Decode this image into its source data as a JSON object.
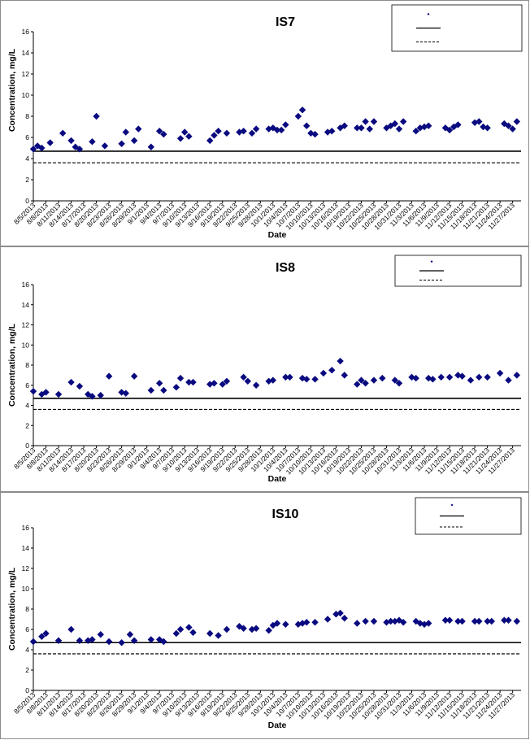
{
  "chart_data": [
    {
      "type": "scatter",
      "title": "IS7",
      "xlabel": "Date",
      "ylabel": "Concentration, mg/L",
      "ylim": [
        0,
        16
      ],
      "yticks": [
        0,
        2,
        4,
        6,
        8,
        10,
        12,
        14,
        16
      ],
      "xticks": [
        "8/5/2013",
        "8/8/2013",
        "8/11/2013",
        "8/14/2013",
        "8/17/2013",
        "8/20/2013",
        "8/23/2013",
        "8/26/2013",
        "8/29/2013",
        "9/1/2013",
        "9/4/2013",
        "9/7/2013",
        "9/10/2013",
        "9/13/2013",
        "9/16/2013",
        "9/19/2013",
        "9/22/2013",
        "9/25/2013",
        "9/28/2013",
        "10/1/2013",
        "10/4/2013",
        "10/7/2013",
        "10/10/2013",
        "10/13/2013",
        "10/16/2013",
        "10/19/2013",
        "10/22/2013",
        "10/25/2013",
        "10/28/2013",
        "10/31/2013",
        "11/3/2013",
        "11/6/2013",
        "11/9/2013",
        "11/12/2013",
        "11/15/2013",
        "11/18/2013",
        "11/21/2013",
        "11/24/2013",
        "11/27/2013"
      ],
      "legend_position": "top-right",
      "series": [
        {
          "color": "#0a0a80",
          "marker": "diamond",
          "x": [
            "8/5/2013",
            "8/6/2013",
            "8/7/2013",
            "8/9/2013",
            "8/12/2013",
            "8/14/2013",
            "8/15/2013",
            "8/16/2013",
            "8/19/2013",
            "8/20/2013",
            "8/22/2013",
            "8/26/2013",
            "8/27/2013",
            "8/29/2013",
            "8/30/2013",
            "9/2/2013",
            "9/4/2013",
            "9/5/2013",
            "9/9/2013",
            "9/10/2013",
            "9/11/2013",
            "9/16/2013",
            "9/17/2013",
            "9/18/2013",
            "9/20/2013",
            "9/23/2013",
            "9/24/2013",
            "9/26/2013",
            "9/27/2013",
            "9/30/2013",
            "10/1/2013",
            "10/2/2013",
            "10/3/2013",
            "10/4/2013",
            "10/7/2013",
            "10/8/2013",
            "10/9/2013",
            "10/10/2013",
            "10/11/2013",
            "10/14/2013",
            "10/15/2013",
            "10/17/2013",
            "10/18/2013",
            "10/21/2013",
            "10/22/2013",
            "10/23/2013",
            "10/24/2013",
            "10/25/2013",
            "10/28/2013",
            "10/29/2013",
            "10/30/2013",
            "10/31/2013",
            "11/1/2013",
            "11/4/2013",
            "11/5/2013",
            "11/6/2013",
            "11/7/2013",
            "11/11/2013",
            "11/12/2013",
            "11/13/2013",
            "11/14/2013",
            "11/18/2013",
            "11/19/2013",
            "11/20/2013",
            "11/21/2013",
            "11/25/2013",
            "11/26/2013",
            "11/27/2013",
            "11/28/2013"
          ],
          "y": [
            4.9,
            5.2,
            5.0,
            5.5,
            6.4,
            5.7,
            5.1,
            4.9,
            5.6,
            8.0,
            5.2,
            5.4,
            6.5,
            5.7,
            6.8,
            5.1,
            6.6,
            6.3,
            5.9,
            6.5,
            6.1,
            5.7,
            6.2,
            6.6,
            6.4,
            6.5,
            6.6,
            6.4,
            6.8,
            6.8,
            6.9,
            6.7,
            6.7,
            7.2,
            8.0,
            8.6,
            7.1,
            6.4,
            6.3,
            6.5,
            6.6,
            6.9,
            7.1,
            6.9,
            6.9,
            7.5,
            6.8,
            7.5,
            6.9,
            7.1,
            7.3,
            6.8,
            7.5,
            6.6,
            6.9,
            7.0,
            7.1,
            6.9,
            6.7,
            7.0,
            7.2,
            7.4,
            7.5,
            7.0,
            6.9,
            7.3,
            7.1,
            6.8,
            7.5
          ]
        }
      ],
      "reference_lines": [
        {
          "y": 4.7,
          "style": "solid",
          "color": "#000000"
        },
        {
          "y": 3.6,
          "style": "dashed",
          "color": "#000000"
        }
      ]
    },
    {
      "type": "scatter",
      "title": "IS8",
      "xlabel": "Date",
      "ylabel": "Concentration, mg/L",
      "ylim": [
        0,
        16
      ],
      "yticks": [
        0,
        2,
        4,
        6,
        8,
        10,
        12,
        14,
        16
      ],
      "xticks": [
        "8/5/2013",
        "8/8/2013",
        "8/11/2013",
        "8/14/2013",
        "8/17/2013",
        "8/20/2013",
        "8/23/2013",
        "8/26/2013",
        "8/29/2013",
        "9/1/2013",
        "9/4/2013",
        "9/7/2013",
        "9/10/2013",
        "9/13/2013",
        "9/16/2013",
        "9/19/2013",
        "9/22/2013",
        "9/25/2013",
        "9/28/2013",
        "10/1/2013",
        "10/4/2013",
        "10/7/2013",
        "10/10/2013",
        "10/13/2013",
        "10/16/2013",
        "10/19/2013",
        "10/22/2013",
        "10/25/2013",
        "10/28/2013",
        "10/31/2013",
        "11/3/2013",
        "11/6/2013",
        "11/9/2013",
        "11/12/2013",
        "11/15/2013",
        "11/18/2013",
        "11/21/2013",
        "11/24/2013",
        "11/27/2013"
      ],
      "legend_position": "top-right",
      "series": [
        {
          "color": "#0a0a80",
          "marker": "diamond",
          "x": [
            "8/5/2013",
            "8/7/2013",
            "8/8/2013",
            "8/11/2013",
            "8/14/2013",
            "8/16/2013",
            "8/18/2013",
            "8/19/2013",
            "8/21/2013",
            "8/23/2013",
            "8/26/2013",
            "8/27/2013",
            "8/29/2013",
            "9/2/2013",
            "9/4/2013",
            "9/5/2013",
            "9/8/2013",
            "9/9/2013",
            "9/11/2013",
            "9/12/2013",
            "9/16/2013",
            "9/17/2013",
            "9/19/2013",
            "9/20/2013",
            "9/24/2013",
            "9/25/2013",
            "9/27/2013",
            "9/30/2013",
            "10/1/2013",
            "10/4/2013",
            "10/5/2013",
            "10/8/2013",
            "10/9/2013",
            "10/11/2013",
            "10/13/2013",
            "10/15/2013",
            "10/17/2013",
            "10/18/2013",
            "10/21/2013",
            "10/22/2013",
            "10/23/2013",
            "10/25/2013",
            "10/27/2013",
            "10/30/2013",
            "10/31/2013",
            "11/3/2013",
            "11/4/2013",
            "11/7/2013",
            "11/8/2013",
            "11/10/2013",
            "11/12/2013",
            "11/14/2013",
            "11/15/2013",
            "11/17/2013",
            "11/19/2013",
            "11/21/2013",
            "11/24/2013",
            "11/26/2013",
            "11/28/2013"
          ],
          "y": [
            5.4,
            5.1,
            5.3,
            5.1,
            6.3,
            5.9,
            5.1,
            4.9,
            5.0,
            6.9,
            5.3,
            5.2,
            6.9,
            5.5,
            6.2,
            5.5,
            5.8,
            6.7,
            6.3,
            6.3,
            6.1,
            6.2,
            6.1,
            6.4,
            6.8,
            6.4,
            6.0,
            6.4,
            6.5,
            6.8,
            6.8,
            6.7,
            6.6,
            6.6,
            7.2,
            7.5,
            8.4,
            7.0,
            6.1,
            6.5,
            6.2,
            6.5,
            6.7,
            6.5,
            6.2,
            6.8,
            6.7,
            6.7,
            6.6,
            6.8,
            6.8,
            7.0,
            6.9,
            6.5,
            6.8,
            6.8,
            7.2,
            6.5,
            7.0
          ]
        }
      ],
      "reference_lines": [
        {
          "y": 4.7,
          "style": "solid",
          "color": "#000000"
        },
        {
          "y": 3.6,
          "style": "dashed",
          "color": "#000000"
        }
      ]
    },
    {
      "type": "scatter",
      "title": "IS10",
      "xlabel": "Date",
      "ylabel": "Concentration, mg/L",
      "ylim": [
        0,
        16
      ],
      "yticks": [
        0,
        2,
        4,
        6,
        8,
        10,
        12,
        14,
        16
      ],
      "xticks": [
        "8/5/2013",
        "8/8/2013",
        "8/11/2013",
        "8/14/2013",
        "8/17/2013",
        "8/20/2013",
        "8/23/2013",
        "8/26/2013",
        "8/29/2013",
        "9/1/2013",
        "9/4/2013",
        "9/7/2013",
        "9/10/2013",
        "9/13/2013",
        "9/16/2013",
        "9/19/2013",
        "9/22/2013",
        "9/25/2013",
        "9/28/2013",
        "10/1/2013",
        "10/4/2013",
        "10/7/2013",
        "10/10/2013",
        "10/13/2013",
        "10/16/2013",
        "10/19/2013",
        "10/22/2013",
        "10/25/2013",
        "10/28/2013",
        "10/31/2013",
        "11/3/2013",
        "11/6/2013",
        "11/9/2013",
        "11/12/2013",
        "11/15/2013",
        "11/18/2013",
        "11/21/2013",
        "11/24/2013",
        "11/27/2013"
      ],
      "legend_position": "top-right",
      "series": [
        {
          "color": "#0a0a80",
          "marker": "diamond",
          "x": [
            "8/5/2013",
            "8/7/2013",
            "8/8/2013",
            "8/11/2013",
            "8/14/2013",
            "8/16/2013",
            "8/18/2013",
            "8/19/2013",
            "8/21/2013",
            "8/23/2013",
            "8/26/2013",
            "8/28/2013",
            "8/29/2013",
            "9/2/2013",
            "9/4/2013",
            "9/5/2013",
            "9/8/2013",
            "9/9/2013",
            "9/11/2013",
            "9/12/2013",
            "9/16/2013",
            "9/18/2013",
            "9/20/2013",
            "9/23/2013",
            "9/24/2013",
            "9/26/2013",
            "9/27/2013",
            "9/30/2013",
            "10/1/2013",
            "10/2/2013",
            "10/4/2013",
            "10/7/2013",
            "10/8/2013",
            "10/9/2013",
            "10/11/2013",
            "10/14/2013",
            "10/16/2013",
            "10/17/2013",
            "10/18/2013",
            "10/21/2013",
            "10/23/2013",
            "10/25/2013",
            "10/28/2013",
            "10/29/2013",
            "10/30/2013",
            "10/31/2013",
            "11/1/2013",
            "11/4/2013",
            "11/5/2013",
            "11/6/2013",
            "11/7/2013",
            "11/11/2013",
            "11/12/2013",
            "11/14/2013",
            "11/15/2013",
            "11/18/2013",
            "11/19/2013",
            "11/21/2013",
            "11/22/2013",
            "11/25/2013",
            "11/26/2013",
            "11/28/2013"
          ],
          "y": [
            4.8,
            5.3,
            5.6,
            4.9,
            6.0,
            4.9,
            4.9,
            5.0,
            5.5,
            4.8,
            4.7,
            5.5,
            4.9,
            5.0,
            5.0,
            4.8,
            5.6,
            6.0,
            6.2,
            5.7,
            5.6,
            5.4,
            6.0,
            6.3,
            6.1,
            6.0,
            6.1,
            5.9,
            6.4,
            6.6,
            6.5,
            6.5,
            6.6,
            6.7,
            6.7,
            7.0,
            7.5,
            7.6,
            7.1,
            6.6,
            6.8,
            6.8,
            6.7,
            6.8,
            6.8,
            6.9,
            6.7,
            6.8,
            6.6,
            6.5,
            6.6,
            6.9,
            6.9,
            6.8,
            6.8,
            6.8,
            6.8,
            6.8,
            6.8,
            6.9,
            6.9,
            6.8
          ]
        }
      ],
      "reference_lines": [
        {
          "y": 4.7,
          "style": "solid",
          "color": "#000000"
        },
        {
          "y": 3.6,
          "style": "dashed",
          "color": "#000000"
        }
      ]
    }
  ]
}
